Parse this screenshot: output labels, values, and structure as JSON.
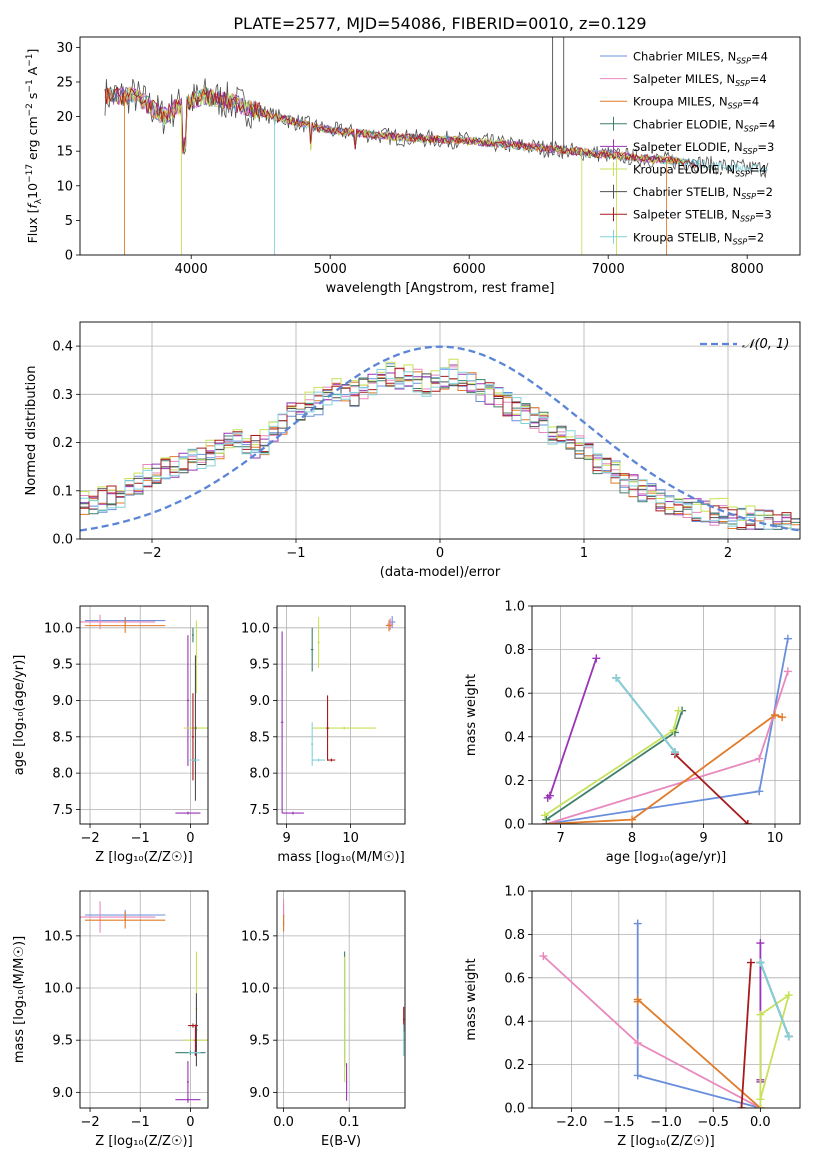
{
  "title": "PLATE=2577, MJD=54086, FIBERID=0010, z=0.129",
  "colors": {
    "cM": "#6a8fdc",
    "sM": "#e888bd",
    "kM": "#e07b2a",
    "cE": "#3d7f6a",
    "sE": "#9a35b7",
    "kE": "#c7e25a",
    "cS": "#505050",
    "sS": "#a81b1d",
    "kS": "#82d2dc",
    "gauss": "#5b85d6",
    "grid": "#b0b0b0"
  },
  "chart_data": [
    {
      "id": "spectrum",
      "type": "line",
      "xlabel": "wavelength [Angstrom, rest frame]",
      "ylabel_parts": [
        "Flux [",
        "f",
        "λ",
        "10",
        "−17",
        " erg cm",
        "−2",
        " s",
        "−1",
        " A",
        "−1",
        "]"
      ],
      "xlim": [
        3200,
        8380
      ],
      "ylim": [
        0,
        31.5
      ],
      "xticks": [
        4000,
        5000,
        6000,
        7000,
        8000
      ],
      "yticks": [
        0,
        5,
        10,
        15,
        20,
        25,
        30
      ],
      "grid": false,
      "legend_position": "top-right",
      "series": [
        {
          "key": "cM",
          "name": "Chabrier MILES",
          "nssp": "4"
        },
        {
          "key": "sM",
          "name": "Salpeter MILES",
          "nssp": "4"
        },
        {
          "key": "kM",
          "name": "Kroupa MILES",
          "nssp": "4"
        },
        {
          "key": "cE",
          "name": "Chabrier ELODIE",
          "nssp": "4"
        },
        {
          "key": "sE",
          "name": "Salpeter ELODIE",
          "nssp": "3"
        },
        {
          "key": "kE",
          "name": "Kroupa ELODIE",
          "nssp": "4"
        },
        {
          "key": "cS",
          "name": "Chabrier STELIB",
          "nssp": "2"
        },
        {
          "key": "sS",
          "name": "Salpeter STELIB",
          "nssp": "3"
        },
        {
          "key": "kS",
          "name": "Kroupa STELIB",
          "nssp": "2"
        }
      ],
      "continuum": [
        [
          3350,
          23
        ],
        [
          3600,
          23
        ],
        [
          3800,
          20
        ],
        [
          3900,
          21.5
        ],
        [
          4100,
          23
        ],
        [
          4300,
          22
        ],
        [
          4600,
          20
        ],
        [
          5000,
          18
        ],
        [
          5500,
          17
        ],
        [
          6000,
          16.5
        ],
        [
          6500,
          15.5
        ],
        [
          7000,
          14.5
        ],
        [
          7500,
          13.5
        ],
        [
          8000,
          12.5
        ],
        [
          8150,
          12.5
        ]
      ]
    },
    {
      "id": "residuals",
      "type": "histogram",
      "xlabel": "(data-model)/error",
      "ylabel": "Normed distribution",
      "xlim": [
        -2.5,
        2.5
      ],
      "ylim": [
        0,
        0.45
      ],
      "xticks": [
        -2,
        -1,
        0,
        1,
        2
      ],
      "yticks": [
        0.0,
        0.1,
        0.2,
        0.3,
        0.4
      ],
      "grid": true,
      "legend_position": "top-right",
      "gaussian_label": "𝒩(0, 1)",
      "bin_width": 0.1,
      "envelope": [
        0.07,
        0.075,
        0.08,
        0.085,
        0.09,
        0.1,
        0.11,
        0.13,
        0.14,
        0.145,
        0.15,
        0.16,
        0.165,
        0.17,
        0.175,
        0.18,
        0.2,
        0.21,
        0.2,
        0.19,
        0.2,
        0.22,
        0.24,
        0.26,
        0.26,
        0.27,
        0.28,
        0.29,
        0.3,
        0.31,
        0.3,
        0.31,
        0.32,
        0.33,
        0.34,
        0.33,
        0.34,
        0.33,
        0.32,
        0.32,
        0.33,
        0.34,
        0.33,
        0.32,
        0.31,
        0.3,
        0.29,
        0.28,
        0.27,
        0.26,
        0.25,
        0.24,
        0.22,
        0.21,
        0.2,
        0.19,
        0.18,
        0.16,
        0.15,
        0.14,
        0.12,
        0.11,
        0.1,
        0.09,
        0.08,
        0.075,
        0.07,
        0.065,
        0.06,
        0.055,
        0.05,
        0.05,
        0.045,
        0.04,
        0.04,
        0.035,
        0.035,
        0.03,
        0.03,
        0.03
      ]
    },
    {
      "id": "age_vs_Z",
      "type": "scatter",
      "xlabel": "Z [log₁₀(Z/Z☉)]",
      "ylabel": "age  [log₁₀(age/yr)]",
      "xlim": [
        -2.2,
        0.35
      ],
      "ylim": [
        7.3,
        10.3
      ],
      "xticks": [
        -2,
        -1,
        0
      ],
      "yticks": [
        7.5,
        8.0,
        8.5,
        9.0,
        9.5,
        10.0
      ],
      "grid": true,
      "points": [
        {
          "key": "cM",
          "x": -1.3,
          "y": 10.1,
          "xerr": 0.8,
          "yerr": 0.05
        },
        {
          "key": "sM",
          "x": -1.8,
          "y": 10.08,
          "xerr": 1.1,
          "yerr": 0.1
        },
        {
          "key": "kM",
          "x": -1.3,
          "y": 10.03,
          "xerr": 0.8,
          "yerr": 0.1
        },
        {
          "key": "cE",
          "x": 0.05,
          "y": 9.9,
          "xerr": 0.02,
          "yerr": 0.1
        },
        {
          "key": "sE",
          "x": -0.05,
          "y": 9.0,
          "xerr": 0.02,
          "yerr": 0.9
        },
        {
          "key": "sE",
          "x": -0.05,
          "y": 7.45,
          "xerr": 0.25,
          "yerr": 0.02
        },
        {
          "key": "kE",
          "x": 0.12,
          "y": 8.62,
          "xerr": 0.25,
          "yerr": 0.02
        },
        {
          "key": "kE",
          "x": 0.12,
          "y": 9.6,
          "xerr": 0.02,
          "yerr": 0.5
        },
        {
          "key": "cS",
          "x": 0.1,
          "y": 8.62,
          "xerr": 0.02,
          "yerr": 1.0
        },
        {
          "key": "sS",
          "x": 0.05,
          "y": 8.5,
          "xerr": 0.02,
          "yerr": 0.6
        },
        {
          "key": "kS",
          "x": 0.08,
          "y": 8.18,
          "xerr": 0.1,
          "yerr": 0.02
        }
      ]
    },
    {
      "id": "age_vs_mass",
      "type": "scatter",
      "xlabel": "mass [log₁₀(M/M☉)]",
      "ylabel": "",
      "xlim": [
        8.85,
        10.85
      ],
      "ylim": [
        7.3,
        10.3
      ],
      "xticks": [
        9,
        10
      ],
      "yticks": [
        7.5,
        8.0,
        8.5,
        9.0,
        9.5,
        10.0
      ],
      "grid": true,
      "points": [
        {
          "key": "cM",
          "x": 10.65,
          "y": 10.08,
          "xerr": 0.05,
          "yerr": 0.08
        },
        {
          "key": "sM",
          "x": 10.62,
          "y": 10.05,
          "xerr": 0.05,
          "yerr": 0.08
        },
        {
          "key": "kM",
          "x": 10.6,
          "y": 10.03,
          "xerr": 0.05,
          "yerr": 0.08
        },
        {
          "key": "sE",
          "x": 8.93,
          "y": 8.7,
          "xerr": 0.02,
          "yerr": 1.25
        },
        {
          "key": "sE",
          "x": 9.1,
          "y": 7.45,
          "xerr": 0.17,
          "yerr": 0.02
        },
        {
          "key": "cE",
          "x": 9.4,
          "y": 9.7,
          "xerr": 0.02,
          "yerr": 0.3
        },
        {
          "key": "kE",
          "x": 9.9,
          "y": 8.62,
          "xerr": 0.5,
          "yerr": 0.02
        },
        {
          "key": "kE",
          "x": 9.5,
          "y": 9.8,
          "xerr": 0.02,
          "yerr": 0.35
        },
        {
          "key": "kS",
          "x": 9.5,
          "y": 8.18,
          "xerr": 0.1,
          "yerr": 0.02
        },
        {
          "key": "kS",
          "x": 9.4,
          "y": 8.4,
          "xerr": 0.02,
          "yerr": 0.3
        },
        {
          "key": "sS",
          "x": 9.64,
          "y": 8.62,
          "xerr": 0.02,
          "yerr": 0.45
        },
        {
          "key": "sS",
          "x": 9.7,
          "y": 8.18,
          "xerr": 0.06,
          "yerr": 0.02
        }
      ]
    },
    {
      "id": "weight_vs_age",
      "type": "line",
      "xlabel": "age  [log₁₀(age/yr)]",
      "ylabel": "mass weight",
      "xlim": [
        6.6,
        10.35
      ],
      "ylim": [
        0,
        1.0
      ],
      "xticks": [
        7,
        8,
        9,
        10
      ],
      "yticks": [
        0.0,
        0.2,
        0.4,
        0.6,
        0.8,
        1.0
      ],
      "grid": true,
      "lines": [
        {
          "key": "cM",
          "pts": [
            [
              6.8,
              0.0
            ],
            [
              9.78,
              0.15
            ],
            [
              10.18,
              0.85
            ]
          ]
        },
        {
          "key": "sM",
          "pts": [
            [
              6.8,
              0.0
            ],
            [
              9.78,
              0.3
            ],
            [
              10.18,
              0.7
            ]
          ]
        },
        {
          "key": "kM",
          "pts": [
            [
              6.8,
              0.0
            ],
            [
              8.0,
              0.02
            ],
            [
              10.0,
              0.5
            ],
            [
              10.1,
              0.49
            ]
          ]
        },
        {
          "key": "cE",
          "pts": [
            [
              6.8,
              0.02
            ],
            [
              8.6,
              0.42
            ],
            [
              8.7,
              0.52
            ]
          ]
        },
        {
          "key": "sE",
          "pts": [
            [
              6.82,
              0.12
            ],
            [
              6.85,
              0.13
            ],
            [
              7.5,
              0.76
            ]
          ]
        },
        {
          "key": "kE",
          "pts": [
            [
              6.78,
              0.04
            ],
            [
              8.58,
              0.43
            ],
            [
              8.65,
              0.52
            ]
          ]
        },
        {
          "key": "cS",
          "pts": [
            [
              7.78,
              0.67
            ],
            [
              8.6,
              0.33
            ]
          ]
        },
        {
          "key": "sS",
          "pts": [
            [
              8.6,
              0.32
            ],
            [
              9.62,
              0.0
            ]
          ]
        },
        {
          "key": "kS",
          "pts": [
            [
              7.78,
              0.67
            ],
            [
              8.6,
              0.33
            ]
          ]
        }
      ]
    },
    {
      "id": "mass_vs_Z",
      "type": "scatter",
      "xlabel": "Z [log₁₀(Z/Z☉)]",
      "ylabel": "mass [log₁₀(M/M☉)]",
      "xlim": [
        -2.2,
        0.35
      ],
      "ylim": [
        8.85,
        10.93
      ],
      "xticks": [
        -2,
        -1,
        0
      ],
      "yticks": [
        9.0,
        9.5,
        10.0,
        10.5
      ],
      "grid": true,
      "points": [
        {
          "key": "cM",
          "x": -1.3,
          "y": 10.7,
          "xerr": 0.8,
          "yerr": 0.05
        },
        {
          "key": "sM",
          "x": -1.8,
          "y": 10.68,
          "xerr": 1.1,
          "yerr": 0.15
        },
        {
          "key": "kM",
          "x": -1.3,
          "y": 10.65,
          "xerr": 0.8,
          "yerr": 0.08
        },
        {
          "key": "sE",
          "x": -0.05,
          "y": 8.93,
          "xerr": 0.25,
          "yerr": 0.02
        },
        {
          "key": "sE",
          "x": -0.05,
          "y": 9.1,
          "xerr": 0.02,
          "yerr": 0.2
        },
        {
          "key": "kE",
          "x": 0.12,
          "y": 9.5,
          "xerr": 0.25,
          "yerr": 0.02
        },
        {
          "key": "kE",
          "x": 0.12,
          "y": 9.8,
          "xerr": 0.02,
          "yerr": 0.55
        },
        {
          "key": "cE",
          "x": 0.0,
          "y": 9.38,
          "xerr": 0.3,
          "yerr": 0.02
        },
        {
          "key": "cS",
          "x": 0.12,
          "y": 9.6,
          "xerr": 0.02,
          "yerr": 0.35
        },
        {
          "key": "sS",
          "x": 0.05,
          "y": 9.64,
          "xerr": 0.1,
          "yerr": 0.02
        },
        {
          "key": "sS",
          "x": 0.1,
          "y": 9.5,
          "xerr": 0.02,
          "yerr": 0.15
        },
        {
          "key": "kS",
          "x": 0.08,
          "y": 9.38,
          "xerr": 0.12,
          "yerr": 0.02
        }
      ]
    },
    {
      "id": "mass_vs_ebv",
      "type": "scatter",
      "xlabel": "E(B-V)",
      "ylabel": "",
      "xlim": [
        -0.01,
        0.185
      ],
      "ylim": [
        8.85,
        10.93
      ],
      "xticks": [
        0.0,
        0.1
      ],
      "yticks": [
        9.0,
        9.5,
        10.0,
        10.5
      ],
      "grid": true,
      "points": [
        {
          "key": "cM",
          "x": 0.0,
          "y": 10.7,
          "xerr": 0.001,
          "yerr": 0.1
        },
        {
          "key": "sM",
          "x": 0.0,
          "y": 10.7,
          "xerr": 0.001,
          "yerr": 0.15
        },
        {
          "key": "kM",
          "x": 0.0,
          "y": 10.62,
          "xerr": 0.001,
          "yerr": 0.08
        },
        {
          "key": "cE",
          "x": 0.093,
          "y": 9.8,
          "xerr": 0.001,
          "yerr": 0.55
        },
        {
          "key": "kE",
          "x": 0.093,
          "y": 9.7,
          "xerr": 0.001,
          "yerr": 0.6
        },
        {
          "key": "sE",
          "x": 0.096,
          "y": 9.1,
          "xerr": 0.001,
          "yerr": 0.18
        },
        {
          "key": "sS",
          "x": 0.183,
          "y": 9.7,
          "xerr": 0.001,
          "yerr": 0.12
        },
        {
          "key": "kS",
          "x": 0.183,
          "y": 9.5,
          "xerr": 0.001,
          "yerr": 0.15
        }
      ]
    },
    {
      "id": "weight_vs_Z",
      "type": "line",
      "xlabel": "Z [log₁₀(Z/Z☉)]",
      "ylabel": "mass weight",
      "xlim": [
        -2.42,
        0.42
      ],
      "ylim": [
        0,
        1.0
      ],
      "xticks": [
        -2.0,
        -1.5,
        -1.0,
        -0.5,
        0.0
      ],
      "yticks": [
        0.0,
        0.2,
        0.4,
        0.6,
        0.8,
        1.0
      ],
      "grid": true,
      "lines": [
        {
          "key": "cM",
          "pts": [
            [
              -1.3,
              0.85
            ],
            [
              -1.3,
              0.15
            ],
            [
              0.0,
              0.0
            ]
          ]
        },
        {
          "key": "sM",
          "pts": [
            [
              -2.3,
              0.7
            ],
            [
              -1.3,
              0.3
            ],
            [
              0.0,
              0.0
            ]
          ]
        },
        {
          "key": "kM",
          "pts": [
            [
              -1.3,
              0.49
            ],
            [
              -1.3,
              0.5
            ],
            [
              0.0,
              0.0
            ]
          ]
        },
        {
          "key": "cE",
          "pts": [
            [
              0.0,
              0.67
            ],
            [
              0.3,
              0.33
            ]
          ]
        },
        {
          "key": "sE",
          "pts": [
            [
              0.0,
              0.76
            ],
            [
              0.0,
              0.12
            ],
            [
              0.0,
              0.13
            ]
          ]
        },
        {
          "key": "kE",
          "pts": [
            [
              0.0,
              0.0
            ],
            [
              0.0,
              0.43
            ],
            [
              0.3,
              0.52
            ],
            [
              0.0,
              0.04
            ]
          ]
        },
        {
          "key": "cS",
          "pts": [
            [
              0.0,
              0.67
            ],
            [
              0.3,
              0.33
            ]
          ]
        },
        {
          "key": "sS",
          "pts": [
            [
              -0.1,
              0.67
            ],
            [
              -0.2,
              0.0
            ]
          ]
        },
        {
          "key": "kS",
          "pts": [
            [
              0.0,
              0.67
            ],
            [
              0.3,
              0.33
            ]
          ]
        }
      ]
    }
  ]
}
